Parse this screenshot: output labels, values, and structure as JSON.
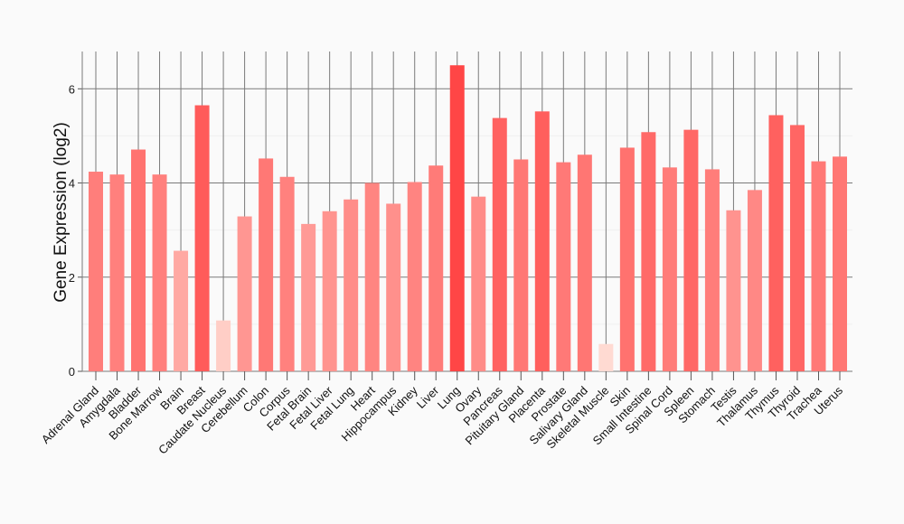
{
  "chart_data": {
    "type": "bar",
    "title": "",
    "xlabel": "",
    "ylabel": "Gene Expression (log2)",
    "ylim": [
      0,
      6.8
    ],
    "yticks": [
      0,
      2,
      4,
      6
    ],
    "grid": true,
    "categories": [
      "Adrenal Gland",
      "Amygdala",
      "Bladder",
      "Bone Marrow",
      "Brain",
      "Breast",
      "Caudate Nucleus",
      "Cerebellum",
      "Colon",
      "Corpus",
      "Fetal Brain",
      "Fetal Liver",
      "Fetal Lung",
      "Heart",
      "Hippocampus",
      "Kidney",
      "Liver",
      "Lung",
      "Ovary",
      "Pancreas",
      "Pituitary Gland",
      "Placenta",
      "Prostate",
      "Salivary Gland",
      "Skeletal Muscle",
      "Skin",
      "Small Intestine",
      "Spinal Cord",
      "Spleen",
      "Stomach",
      "Testis",
      "Thalamus",
      "Thymus",
      "Thyroid",
      "Trachea",
      "Uterus"
    ],
    "values": [
      4.24,
      4.18,
      4.71,
      4.18,
      2.56,
      5.65,
      1.08,
      3.29,
      4.52,
      4.13,
      3.13,
      3.4,
      3.65,
      4.0,
      3.56,
      4.02,
      4.37,
      6.5,
      3.71,
      5.38,
      4.5,
      5.52,
      4.44,
      4.6,
      0.58,
      4.75,
      5.08,
      4.33,
      5.13,
      4.29,
      3.42,
      3.85,
      5.44,
      5.23,
      4.46,
      4.56
    ],
    "color_low": "#ffdcd4",
    "color_high": "#ff4646"
  }
}
